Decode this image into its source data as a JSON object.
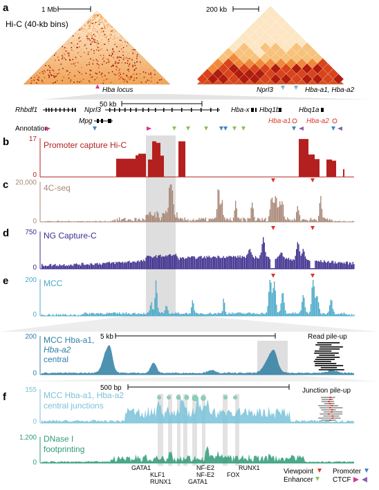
{
  "panels": {
    "a": "a",
    "b": "b",
    "c": "c",
    "d": "d",
    "e": "e",
    "f": "f"
  },
  "hic": {
    "scale_left": "1 Mb",
    "scale_right": "200 kb",
    "title": "Hi-C (40-kb bins)",
    "locus_label": "Hba locus",
    "right_genes": "Nprl3",
    "right_genes2": "Hba-a1, Hba-a2"
  },
  "genes": {
    "scale": "50 kb",
    "rhbdf1": "Rhbdf1",
    "nprl3": "Nprl3",
    "mpg": "Mpg",
    "hba_x": "Hba-x",
    "hbq1b": "Hbq1b",
    "hbq1a": "Hbq1a",
    "hba_a1": "Hba-a1",
    "hba_a2": "Hba-a2",
    "annotation": "Annotation"
  },
  "tracks": {
    "b": {
      "label": "Promoter capture Hi-C",
      "ymax": "17",
      "ymin": "0",
      "color": "#b3201f"
    },
    "c": {
      "label": "4C-seq",
      "ymax": "20,000",
      "ymin": "0",
      "color": "#a78676"
    },
    "d": {
      "label": "NG Capture-C",
      "ymax": "750",
      "ymin": "0",
      "color": "#3b2c8c"
    },
    "e": {
      "label": "MCC",
      "ymax": "200",
      "ymin": "0",
      "color": "#4aa9c9"
    },
    "e2": {
      "label1": "MCC Hba-a1,",
      "label2": "Hba-a2",
      "label3": "central",
      "ymax": "200",
      "ymin": "0",
      "scale": "5 kb",
      "pileup": "Read pile-up",
      "color": "#2f7fa3"
    },
    "f1": {
      "label1": "MCC Hba-a1, Hba-a2",
      "label2": "central junctions",
      "ymax": "155",
      "ymin": "0",
      "scale": "500 bp",
      "pileup": "Junction pile-up",
      "color": "#79c2d8"
    },
    "f2": {
      "label1": "DNase I",
      "label2": "footprinting",
      "ymax": "1,200",
      "ymin": "0",
      "color": "#2e9a78"
    }
  },
  "tf_labels": [
    "GATA1",
    "KLF1",
    "RUNX1",
    "NF-E2",
    "NF-E2",
    "GATA1",
    "FOX",
    "RUNX1"
  ],
  "legend": {
    "viewpoint": "Viewpoint",
    "promoter": "Promoter",
    "enhancer": "Enhancer",
    "ctcf": "CTCF"
  },
  "colors": {
    "viewpoint": "#d9382b",
    "promoter": "#3f86c2",
    "enhancer": "#8cc159",
    "ctcf": "#8a5fb0",
    "ctcf_pink": "#d9368f",
    "highlight": "#d8d8d8"
  }
}
